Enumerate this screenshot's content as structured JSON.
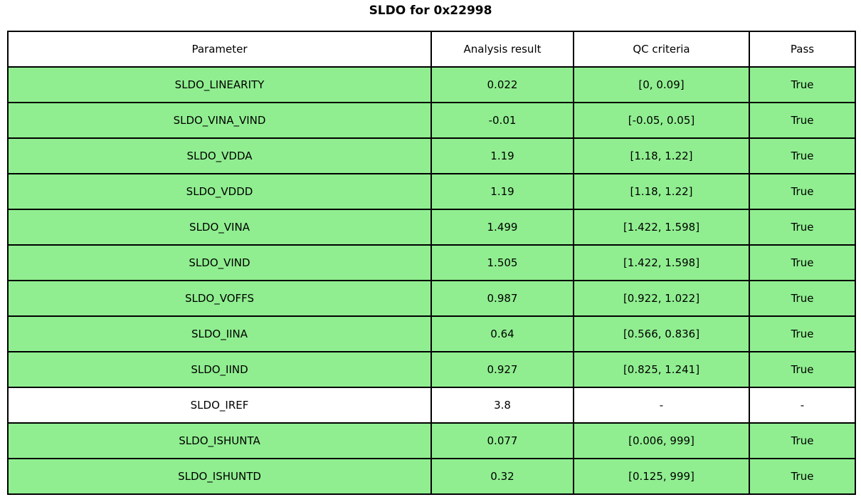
{
  "title": "SLDO for 0x22998",
  "colors": {
    "pass_bg": "#90ee90",
    "neutral_bg": "#ffffff",
    "border": "#000000",
    "text": "#000000"
  },
  "chart_data": {
    "type": "table",
    "title": "SLDO for 0x22998",
    "columns": [
      "Parameter",
      "Analysis result",
      "QC criteria",
      "Pass"
    ],
    "rows": [
      [
        "SLDO_LINEARITY",
        "0.022",
        "[0, 0.09]",
        "True"
      ],
      [
        "SLDO_VINA_VIND",
        "-0.01",
        "[-0.05, 0.05]",
        "True"
      ],
      [
        "SLDO_VDDA",
        "1.19",
        "[1.18, 1.22]",
        "True"
      ],
      [
        "SLDO_VDDD",
        "1.19",
        "[1.18, 1.22]",
        "True"
      ],
      [
        "SLDO_VINA",
        "1.499",
        "[1.422, 1.598]",
        "True"
      ],
      [
        "SLDO_VIND",
        "1.505",
        "[1.422, 1.598]",
        "True"
      ],
      [
        "SLDO_VOFFS",
        "0.987",
        "[0.922, 1.022]",
        "True"
      ],
      [
        "SLDO_IINA",
        "0.64",
        "[0.566, 0.836]",
        "True"
      ],
      [
        "SLDO_IIND",
        "0.927",
        "[0.825, 1.241]",
        "True"
      ],
      [
        "SLDO_IREF",
        "3.8",
        "-",
        "-"
      ],
      [
        "SLDO_ISHUNTA",
        "0.077",
        "[0.006, 999]",
        "True"
      ],
      [
        "SLDO_ISHUNTD",
        "0.32",
        "[0.125, 999]",
        "True"
      ]
    ],
    "row_pass_highlight": [
      true,
      true,
      true,
      true,
      true,
      true,
      true,
      true,
      true,
      false,
      true,
      true
    ]
  }
}
